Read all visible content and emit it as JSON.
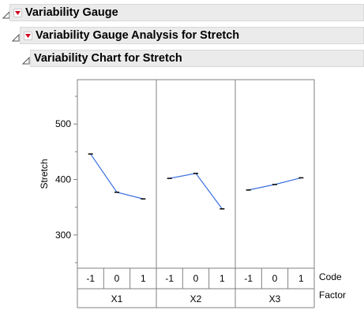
{
  "report": {
    "root_title": "Variability Gauge",
    "analysis_title": "Variability Gauge Analysis for Stretch",
    "chart_title": "Variability Chart for Stretch"
  },
  "chart_data": {
    "type": "line",
    "title": "Variability Chart for Stretch",
    "ylabel": "Stretch",
    "ylim": [
      240,
      580
    ],
    "yticks": [
      300,
      400,
      500
    ],
    "grid": false,
    "bottom_row_labels": {
      "code": "Code",
      "factor": "Factor"
    },
    "groups": [
      {
        "factor": "X1",
        "codes": [
          "-1",
          "0",
          "1"
        ],
        "values": [
          446,
          377,
          365
        ]
      },
      {
        "factor": "X2",
        "codes": [
          "-1",
          "0",
          "1"
        ],
        "values": [
          402,
          411,
          347
        ]
      },
      {
        "factor": "X3",
        "codes": [
          "-1",
          "0",
          "1"
        ],
        "values": [
          381,
          391,
          403
        ]
      }
    ],
    "line_color": "#3a6fe0"
  }
}
